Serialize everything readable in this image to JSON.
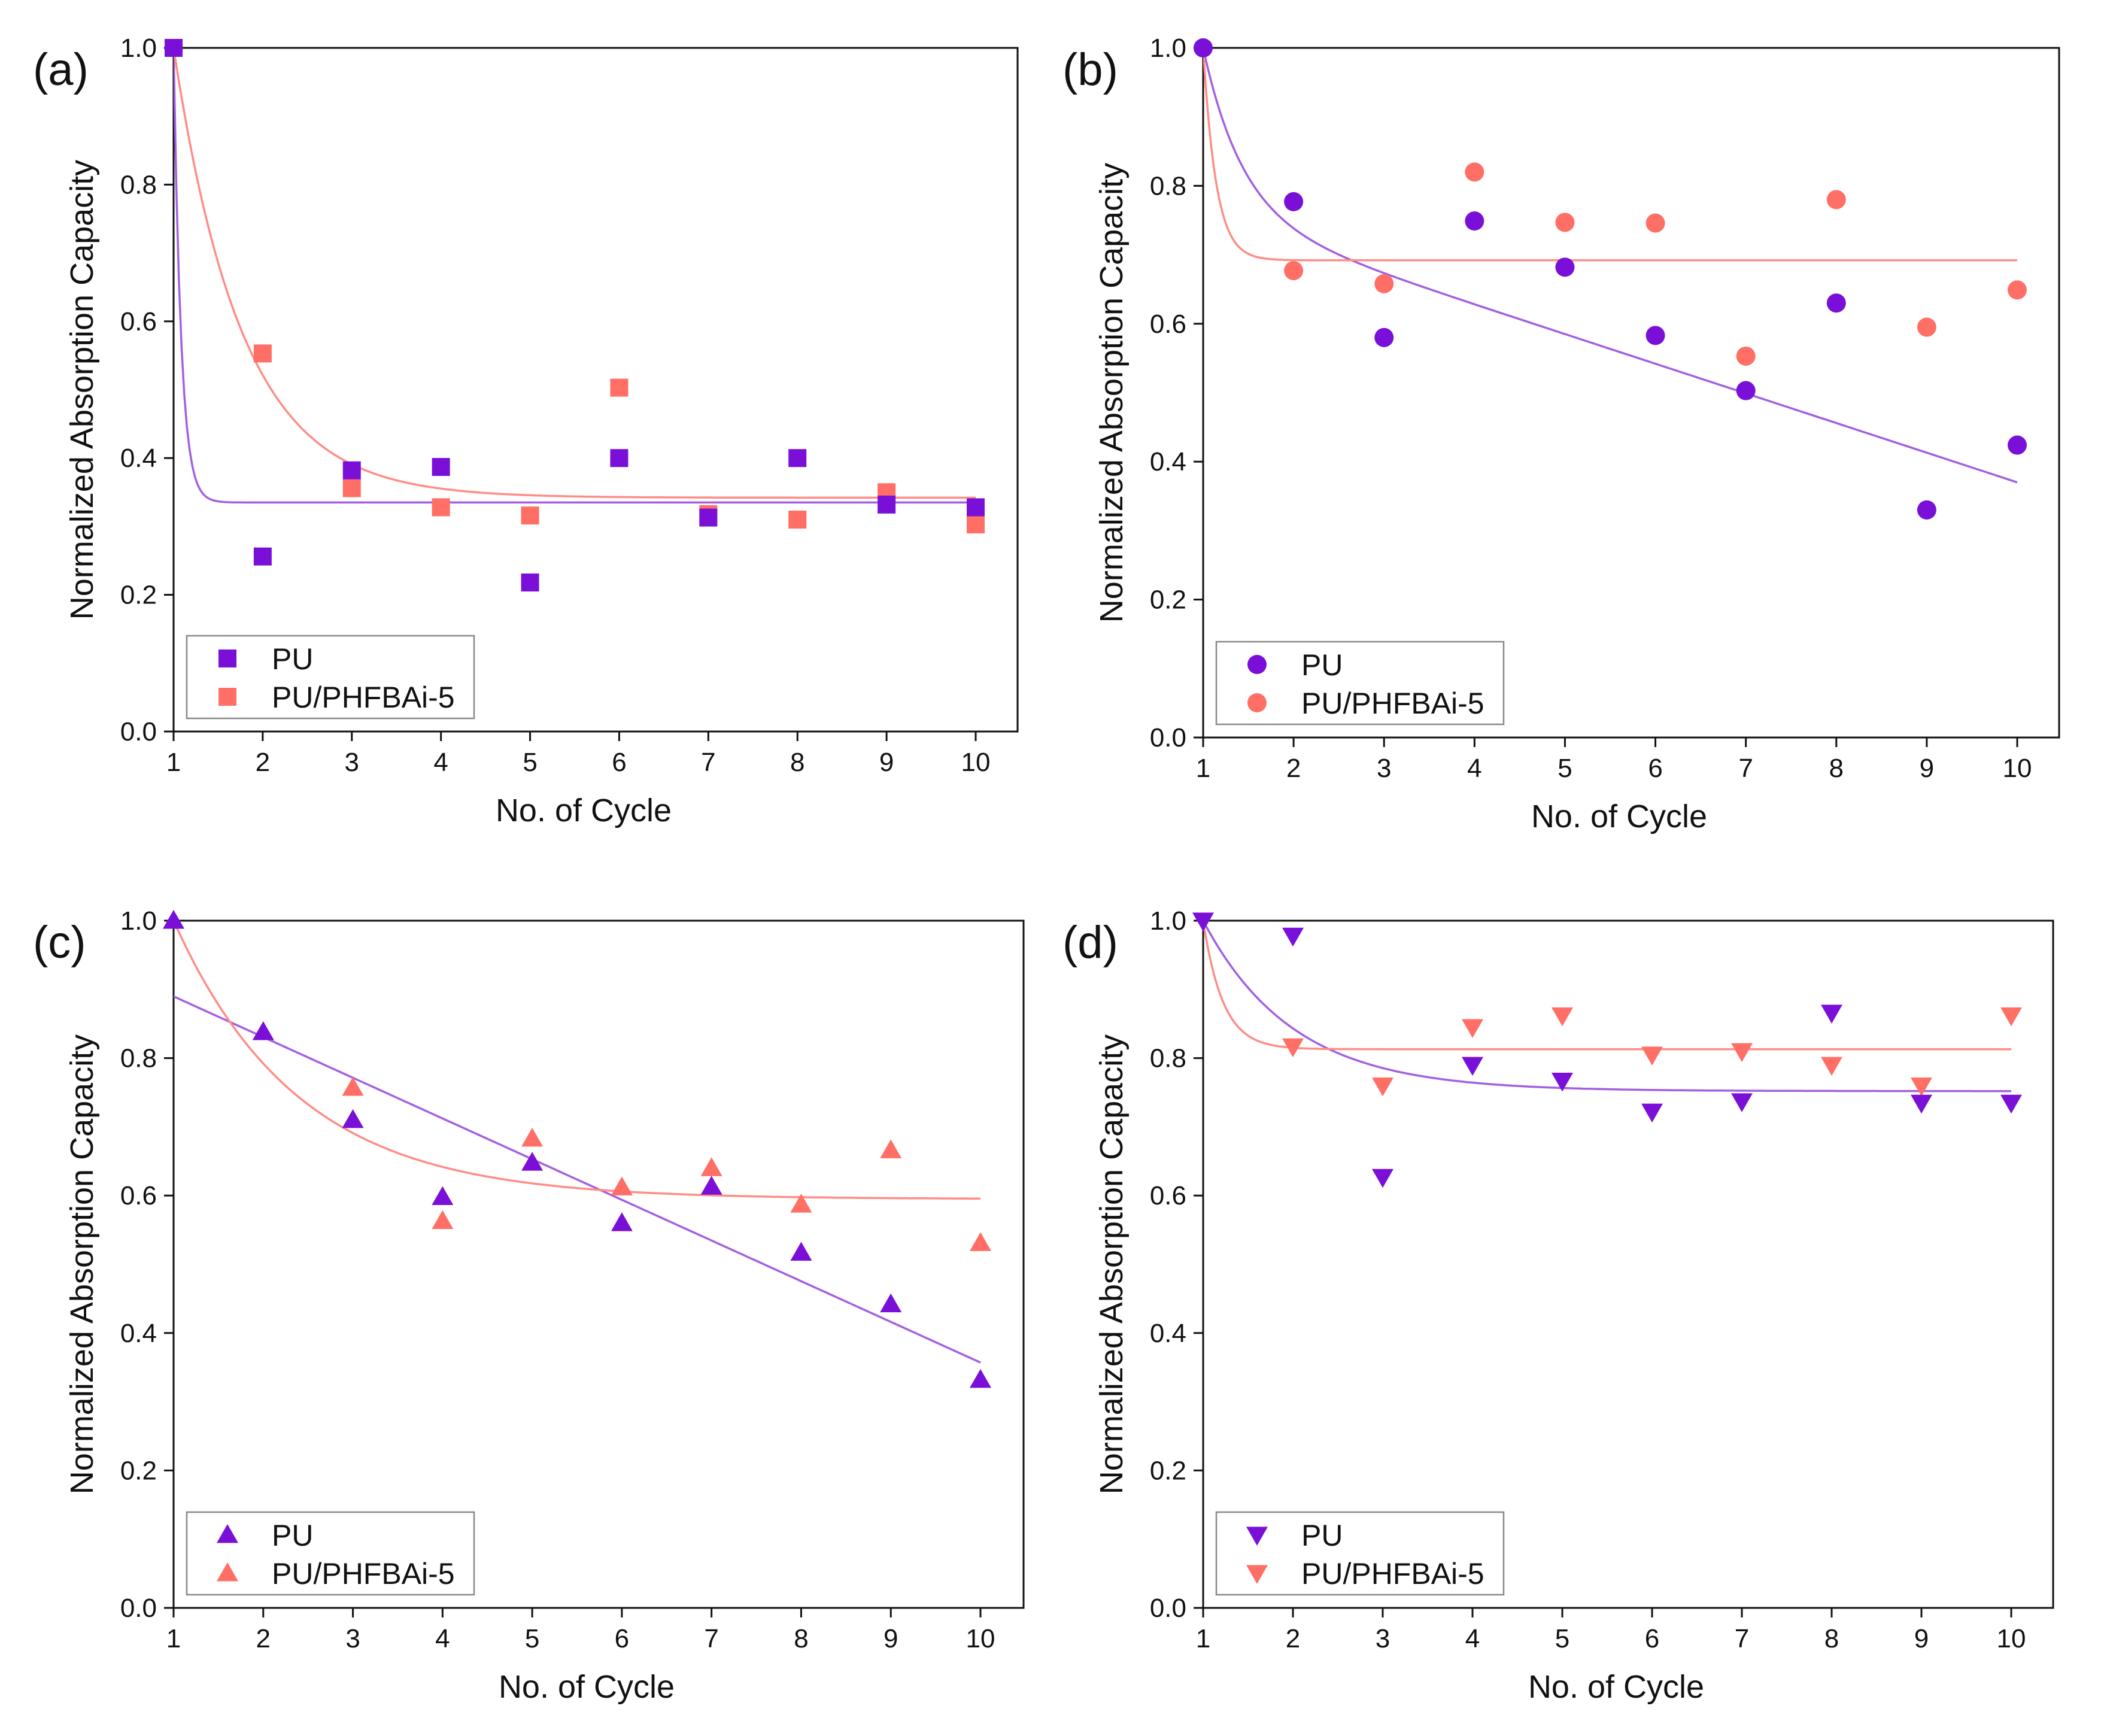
{
  "figure": {
    "marker_color_pu": "#7a10d8",
    "marker_color_phfbai": "#ff6f66",
    "fit_color_pu": "#a35fe0",
    "fit_color_phfbai": "#ff8c86"
  },
  "chart_data": [
    {
      "panel": "(a)",
      "type": "scatter",
      "marker": "square",
      "xlabel": "No. of Cycle",
      "ylabel": "Normalized Absorption Capacity",
      "xlim": [
        1,
        10.5
      ],
      "ylim": [
        0,
        1.0
      ],
      "xticks": [
        1,
        2,
        3,
        4,
        5,
        6,
        7,
        8,
        9,
        10
      ],
      "yticks": [
        0.0,
        0.2,
        0.4,
        0.6,
        0.8,
        1.0
      ],
      "ytick_labels": [
        "0.0",
        "0.2",
        "0.4",
        "0.6",
        "0.8",
        "1.0"
      ],
      "legend_position": "bottom-left",
      "series": [
        {
          "name": "PU",
          "x": [
            1,
            2,
            3,
            4,
            5,
            6,
            7,
            8,
            9,
            10
          ],
          "y": [
            1.0,
            0.256,
            0.382,
            0.387,
            0.218,
            0.4,
            0.313,
            0.4,
            0.332,
            0.328
          ],
          "fit": {
            "kind": "exp",
            "y0": 0.335,
            "A": 0.665,
            "k": 12.0,
            "x_end": 10
          }
        },
        {
          "name": "PU/PHFBAi-5",
          "x": [
            1,
            2,
            3,
            4,
            5,
            6,
            7,
            8,
            9,
            10
          ],
          "y": [
            1.0,
            0.553,
            0.356,
            0.328,
            0.316,
            0.503,
            0.318,
            0.31,
            0.35,
            0.303
          ],
          "fit": {
            "kind": "exp",
            "y0": 0.342,
            "A": 0.658,
            "k": 1.3,
            "x_end": 10
          }
        }
      ]
    },
    {
      "panel": "(b)",
      "type": "scatter",
      "marker": "circle",
      "xlabel": "No. of Cycle",
      "ylabel": "Normalized Absorption Capacity",
      "xlim": [
        1,
        10.5
      ],
      "ylim": [
        0,
        1.0
      ],
      "xticks": [
        1,
        2,
        3,
        4,
        5,
        6,
        7,
        8,
        9,
        10
      ],
      "yticks": [
        0.0,
        0.2,
        0.4,
        0.6,
        0.8,
        1.0
      ],
      "ytick_labels": [
        "0.0",
        "0.2",
        "0.4",
        "0.6",
        "0.8",
        "1.0"
      ],
      "legend_position": "bottom-left",
      "series": [
        {
          "name": "PU",
          "x": [
            1,
            2,
            3,
            4,
            5,
            6,
            7,
            8,
            9,
            10
          ],
          "y": [
            1.0,
            0.777,
            0.58,
            0.749,
            0.682,
            0.583,
            0.503,
            0.63,
            0.33,
            0.424
          ],
          "fit": {
            "kind": "explin",
            "a": 0.8,
            "b": -0.043,
            "A": 0.243,
            "k": 2.3,
            "x_end": 10
          }
        },
        {
          "name": "PU/PHFBAi-5",
          "x": [
            1,
            2,
            3,
            4,
            5,
            6,
            7,
            8,
            9,
            10
          ],
          "y": [
            1.0,
            0.677,
            0.658,
            0.82,
            0.747,
            0.746,
            0.553,
            0.78,
            0.595,
            0.649
          ],
          "fit": {
            "kind": "exp",
            "y0": 0.692,
            "A": 0.308,
            "k": 7.0,
            "x_end": 10
          }
        }
      ]
    },
    {
      "panel": "(c)",
      "type": "scatter",
      "marker": "triangle-up",
      "xlabel": "No. of Cycle",
      "ylabel": "Normalized Absorption Capacity",
      "xlim": [
        1,
        10.5
      ],
      "ylim": [
        0,
        1.0
      ],
      "xticks": [
        1,
        2,
        3,
        4,
        5,
        6,
        7,
        8,
        9,
        10
      ],
      "yticks": [
        0.0,
        0.2,
        0.4,
        0.6,
        0.8,
        1.0
      ],
      "ytick_labels": [
        "0.0",
        "0.2",
        "0.4",
        "0.6",
        "0.8",
        "1.0"
      ],
      "legend_position": "bottom-left",
      "series": [
        {
          "name": "PU",
          "x": [
            1,
            2,
            3,
            4,
            5,
            6,
            7,
            8,
            9,
            10
          ],
          "y": [
            1.0,
            0.838,
            0.71,
            0.598,
            0.648,
            0.56,
            0.613,
            0.517,
            0.442,
            0.332
          ],
          "fit": {
            "kind": "linear",
            "a": 0.949,
            "b": -0.0592,
            "x_end": 10
          }
        },
        {
          "name": "PU/PHFBAi-5",
          "x": [
            1,
            2,
            3,
            4,
            5,
            6,
            7,
            8,
            9,
            10
          ],
          "y": [
            1.0,
            0.838,
            0.757,
            0.563,
            0.683,
            0.612,
            0.64,
            0.587,
            0.666,
            0.531
          ],
          "fit": {
            "kind": "exp",
            "y0": 0.595,
            "A": 0.405,
            "k": 0.72,
            "x_end": 10
          }
        }
      ]
    },
    {
      "panel": "(d)",
      "type": "scatter",
      "marker": "triangle-down",
      "xlabel": "No. of Cycle",
      "ylabel": "Normalized Absorption Capacity",
      "xlim": [
        1,
        10.5
      ],
      "ylim": [
        0,
        1.0
      ],
      "xticks": [
        1,
        2,
        3,
        4,
        5,
        6,
        7,
        8,
        9,
        10
      ],
      "yticks": [
        0.0,
        0.2,
        0.4,
        0.6,
        0.8,
        1.0
      ],
      "ytick_labels": [
        "0.0",
        "0.2",
        "0.4",
        "0.6",
        "0.8",
        "1.0"
      ],
      "legend_position": "bottom-left",
      "series": [
        {
          "name": "PU",
          "x": [
            1,
            2,
            3,
            4,
            5,
            6,
            7,
            8,
            9,
            10
          ],
          "y": [
            1.0,
            0.978,
            0.627,
            0.79,
            0.767,
            0.722,
            0.737,
            0.866,
            0.735,
            0.735
          ],
          "fit": {
            "kind": "exp",
            "y0": 0.752,
            "A": 0.248,
            "k": 1.0,
            "x_end": 10
          }
        },
        {
          "name": "PU/PHFBAi-5",
          "x": [
            1,
            2,
            3,
            4,
            5,
            6,
            7,
            8,
            9,
            10
          ],
          "y": [
            1.0,
            0.817,
            0.76,
            0.845,
            0.862,
            0.805,
            0.81,
            0.79,
            0.76,
            0.862
          ],
          "fit": {
            "kind": "exp",
            "y0": 0.813,
            "A": 0.187,
            "k": 4.5,
            "x_end": 10
          }
        }
      ]
    }
  ]
}
